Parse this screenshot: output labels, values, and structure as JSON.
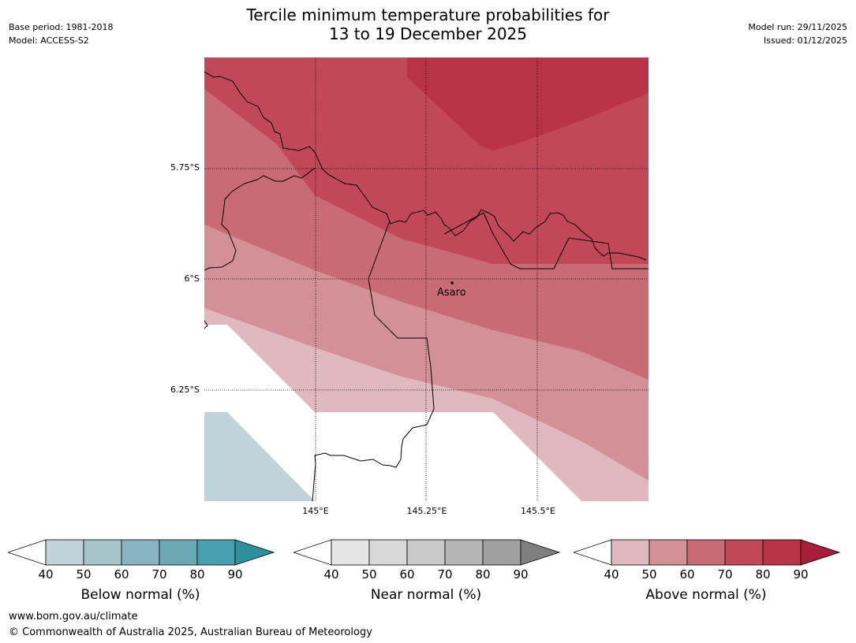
{
  "header": {
    "title_line1": "Tercile minimum temperature probabilities for",
    "title_line2": "13 to 19 December 2025",
    "base_period": "Base period: 1981-2018",
    "model": "Model: ACCESS-S2",
    "model_run": "Model run: 29/11/2025",
    "issued": "Issued: 01/12/2025"
  },
  "map": {
    "latitude_labels": [
      "5.75°S",
      "6°S",
      "6.25°S"
    ],
    "longitude_labels": [
      "145°E",
      "145.25°E",
      "145.5°E"
    ],
    "place_name": "Asaro"
  },
  "legends": [
    {
      "title": "Below normal (%)",
      "ticks": [
        "40",
        "50",
        "60",
        "70",
        "80",
        "90"
      ],
      "colors": [
        "#ffffff",
        "#bfd3d9",
        "#a6c5cb",
        "#87b4c0",
        "#6aaab7",
        "#48a0ae",
        "#2e8f9f"
      ]
    },
    {
      "title": "Near normal (%)",
      "ticks": [
        "40",
        "50",
        "60",
        "70",
        "80",
        "90"
      ],
      "colors": [
        "#ffffff",
        "#e5e5e5",
        "#d8d8d8",
        "#c9c9c9",
        "#b5b5b5",
        "#a0a0a0",
        "#7f7f7f"
      ]
    },
    {
      "title": "Above normal (%)",
      "ticks": [
        "40",
        "50",
        "60",
        "70",
        "80",
        "90"
      ],
      "colors": [
        "#ffffff",
        "#e0b9be",
        "#d49097",
        "#c96b74",
        "#c04857",
        "#b93347",
        "#a81e38"
      ]
    }
  ],
  "footer": {
    "url": "www.bom.gov.au/climate",
    "copyright": "© Commonwealth of Australia 2025, Australian Bureau of Meteorology"
  }
}
